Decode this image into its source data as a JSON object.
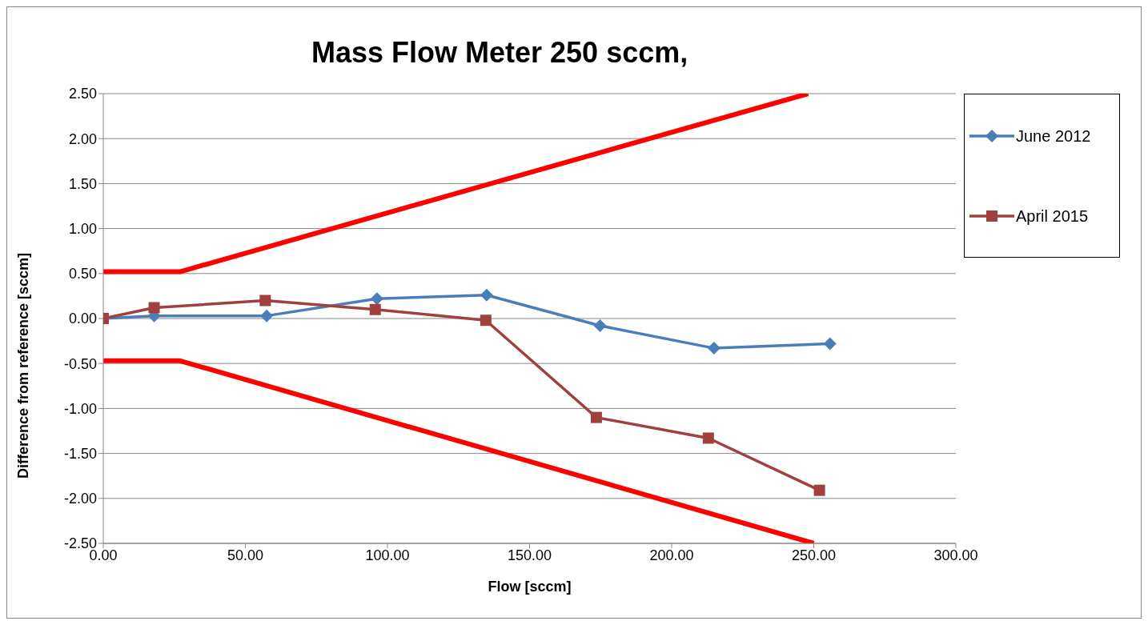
{
  "chart_data": {
    "type": "line",
    "title": "Mass Flow Meter 250 sccm,",
    "xlabel": "Flow [sccm]",
    "ylabel": "Difference from reference [sccm]",
    "xlim": [
      0,
      300
    ],
    "xticks": [
      {
        "value": 0,
        "label": "0.00"
      },
      {
        "value": 50,
        "label": "50.00"
      },
      {
        "value": 100,
        "label": "100.00"
      },
      {
        "value": 150,
        "label": "150.00"
      },
      {
        "value": 200,
        "label": "200.00"
      },
      {
        "value": 250,
        "label": "250.00"
      },
      {
        "value": 300,
        "label": "300.00"
      }
    ],
    "ylim": [
      -2.5,
      2.5
    ],
    "yticks": [
      {
        "value": -2.5,
        "label": "-2.50"
      },
      {
        "value": -2,
        "label": "-2.00"
      },
      {
        "value": -1.5,
        "label": "-1.50"
      },
      {
        "value": -1,
        "label": "-1.00"
      },
      {
        "value": -0.5,
        "label": "-0.50"
      },
      {
        "value": 0,
        "label": "0.00"
      },
      {
        "value": 0.5,
        "label": "0.50"
      },
      {
        "value": 1,
        "label": "1.00"
      },
      {
        "value": 1.5,
        "label": "1.50"
      },
      {
        "value": 2,
        "label": "2.00"
      },
      {
        "value": 2.5,
        "label": "2.50"
      }
    ],
    "grid": "y",
    "legend": "top right",
    "line_style": "solid",
    "series": [
      {
        "name": "June 2012",
        "color": "#4a7ebb",
        "marker": "diamond",
        "x": [
          0,
          17.9,
          57.5,
          96.3,
          134.9,
          174.8,
          214.9,
          255.7
        ],
        "values": [
          0,
          0.03,
          0.03,
          0.22,
          0.26,
          -0.08,
          -0.33,
          -0.28
        ]
      },
      {
        "name": "April 2015",
        "color": "#a0413e",
        "marker": "square",
        "x": [
          0,
          17.9,
          57,
          95.7,
          134.6,
          173.5,
          212.9,
          252
        ],
        "values": [
          0,
          0.12,
          0.2,
          0.1,
          -0.02,
          -1.1,
          -1.33,
          -1.91
        ]
      },
      {
        "color": "#ff0000",
        "marker": "none",
        "x": [
          0,
          27,
          248
        ],
        "values": [
          0.52,
          0.52,
          2.5
        ]
      },
      {
        "color": "#ff0000",
        "marker": "none",
        "x": [
          0,
          27,
          250
        ],
        "values": [
          -0.47,
          -0.47,
          -2.5
        ]
      }
    ]
  }
}
